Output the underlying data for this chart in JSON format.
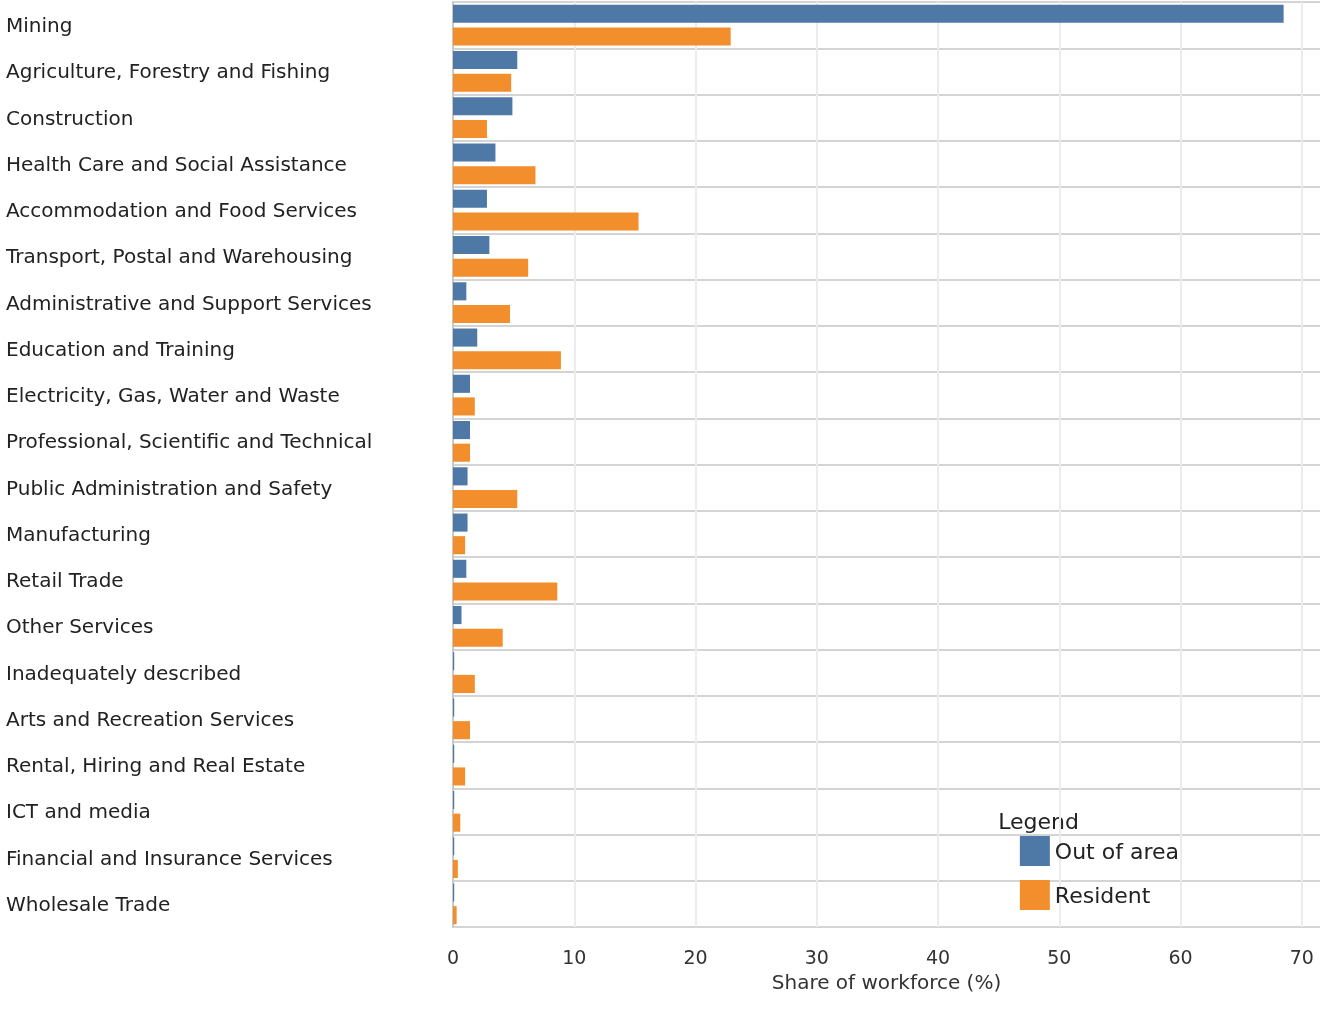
{
  "chart_data": {
    "type": "bar",
    "orientation": "horizontal",
    "xlabel": "Share of workforce (%)",
    "legend_title": "Legend",
    "legend": "bottom right",
    "grid": true,
    "categories": [
      "Mining",
      "Agriculture, Forestry and Fishing",
      "Construction",
      "Health Care and Social Assistance",
      "Accommodation and Food Services",
      "Transport, Postal and Warehousing",
      "Administrative and Support Services",
      "Education and Training",
      "Electricity, Gas, Water and Waste",
      "Professional, Scientific and Technical",
      "Public Administration and Safety",
      "Manufacturing",
      "Retail Trade",
      "Other Services",
      "Inadequately described",
      "Arts and Recreation Services",
      "Rental, Hiring and Real Estate",
      "ICT and media",
      "Financial and Insurance Services",
      "Wholesale Trade"
    ],
    "series": [
      {
        "name": "Out of area",
        "color": "#4e79a7",
        "values": [
          68.5,
          5.3,
          4.9,
          3.5,
          2.8,
          3.0,
          1.1,
          2.0,
          1.4,
          1.4,
          1.2,
          1.2,
          1.1,
          0.7,
          0.1,
          0.1,
          0.1,
          0.1,
          0.1,
          0.1
        ]
      },
      {
        "name": "Resident",
        "color": "#f28e2b",
        "values": [
          22.9,
          4.8,
          2.8,
          6.8,
          15.3,
          6.2,
          4.7,
          8.9,
          1.8,
          1.4,
          5.3,
          1.0,
          8.6,
          4.1,
          1.8,
          1.4,
          1.0,
          0.6,
          0.4,
          0.3
        ]
      }
    ],
    "xlim": [
      0,
      71.5
    ],
    "xticks": [
      0,
      10,
      20,
      30,
      40,
      50,
      60,
      70
    ]
  }
}
